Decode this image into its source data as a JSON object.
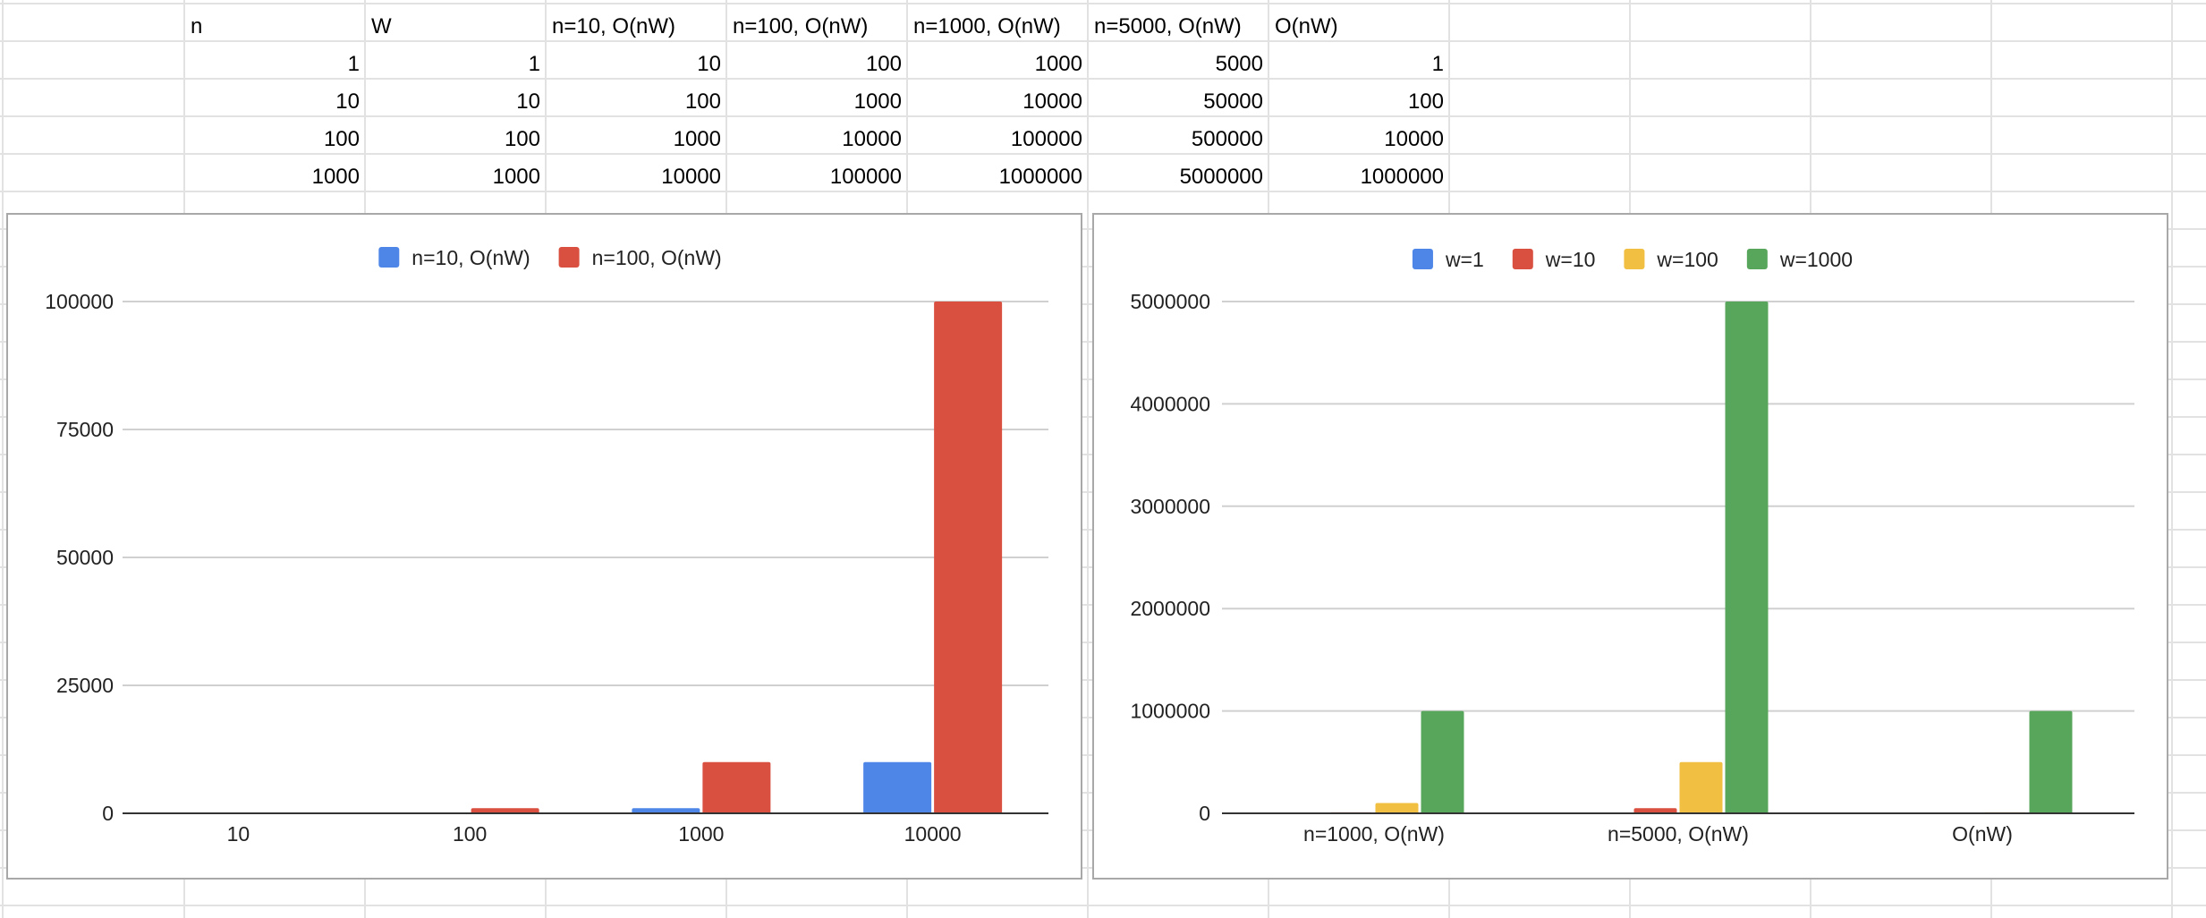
{
  "sheet": {
    "headers": [
      "n",
      "W",
      "n=10, O(nW)",
      "n=100, O(nW)",
      "n=1000, O(nW)",
      "n=5000, O(nW)",
      "O(nW)"
    ],
    "rows": [
      [
        "1",
        "1",
        "10",
        "100",
        "1000",
        "5000",
        "1"
      ],
      [
        "10",
        "10",
        "100",
        "1000",
        "10000",
        "50000",
        "100"
      ],
      [
        "100",
        "100",
        "1000",
        "10000",
        "100000",
        "500000",
        "10000"
      ],
      [
        "1000",
        "1000",
        "10000",
        "100000",
        "1000000",
        "5000000",
        "1000000"
      ]
    ]
  },
  "colors": {
    "blue": "#4e86e8",
    "red": "#d94f40",
    "yellow": "#f1bf42",
    "green": "#58a65c",
    "gridline": "#d0d0d0",
    "sheet_border": "#e2e2e2"
  },
  "chart_data": [
    {
      "type": "bar",
      "categories": [
        "10",
        "100",
        "1000",
        "10000"
      ],
      "series": [
        {
          "name": "n=10, O(nW)",
          "values": [
            10,
            100,
            1000,
            10000
          ],
          "color": "#4e86e8"
        },
        {
          "name": "n=100, O(nW)",
          "values": [
            100,
            1000,
            10000,
            100000
          ],
          "color": "#d94f40"
        }
      ],
      "yticks": [
        "0",
        "25000",
        "50000",
        "75000",
        "100000"
      ],
      "ylim": [
        0,
        100000
      ],
      "legend": "top-center",
      "grid": true
    },
    {
      "type": "bar",
      "categories": [
        "n=1000, O(nW)",
        "n=5000, O(nW)",
        "O(nW)"
      ],
      "series": [
        {
          "name": "w=1",
          "values": [
            1000,
            5000,
            1
          ],
          "color": "#4e86e8"
        },
        {
          "name": "w=10",
          "values": [
            10000,
            50000,
            100
          ],
          "color": "#d94f40"
        },
        {
          "name": "w=100",
          "values": [
            100000,
            500000,
            10000
          ],
          "color": "#f1bf42"
        },
        {
          "name": "w=1000",
          "values": [
            1000000,
            5000000,
            1000000
          ],
          "color": "#58a65c"
        }
      ],
      "yticks": [
        "0",
        "1000000",
        "2000000",
        "3000000",
        "4000000",
        "5000000"
      ],
      "ylim": [
        0,
        5000000
      ],
      "legend": "top-center",
      "grid": true
    }
  ]
}
